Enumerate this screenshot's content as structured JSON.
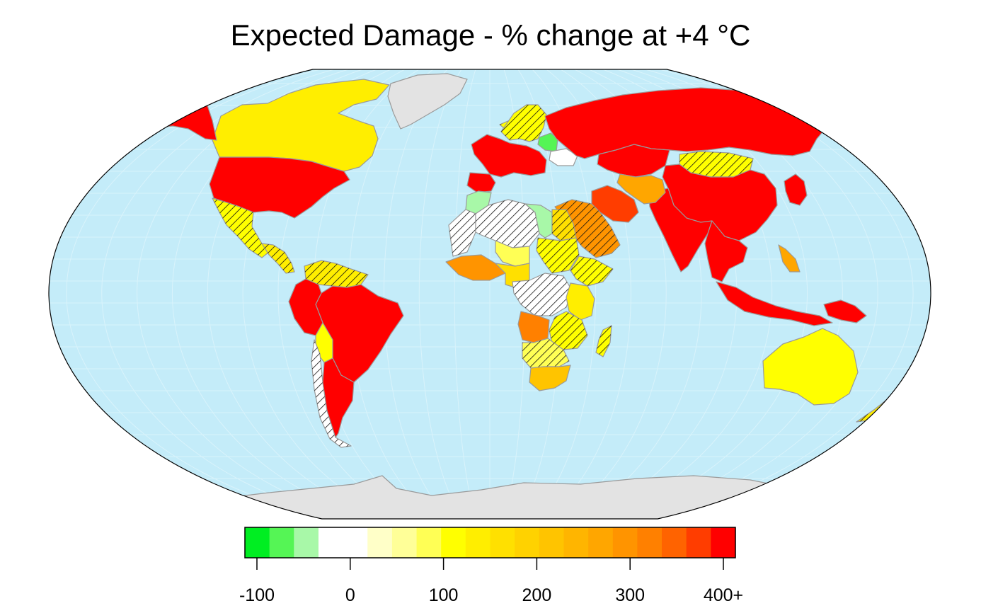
{
  "title": "Expected Damage - % change at +4 °C",
  "colors": {
    "ocean": "#c4ecf9",
    "land_nodata": "#e3e3e3",
    "border": "#9a9a9a",
    "outline": "#000000",
    "graticule": "#d9f3fb",
    "hatch": "#111111"
  },
  "legend": {
    "tick_labels": [
      "-100",
      "0",
      "100",
      "200",
      "300",
      "400+"
    ],
    "tick_values": [
      -100,
      0,
      100,
      200,
      300,
      400
    ],
    "bin_colors": [
      "#00ee22",
      "#55f555",
      "#a8f8a8",
      "#ffffff",
      "#ffffff",
      "#ffffc8",
      "#ffff98",
      "#ffff55",
      "#ffff00",
      "#ffee00",
      "#ffe000",
      "#ffd200",
      "#ffc400",
      "#ffb500",
      "#ffa600",
      "#ff9400",
      "#ff8000",
      "#ff6300",
      "#ff3d00",
      "#ff0000"
    ]
  },
  "regions": [
    {
      "name": "Canada",
      "value": 120
    },
    {
      "name": "United States",
      "value": 400
    },
    {
      "name": "Alaska",
      "value": 400
    },
    {
      "name": "Mexico",
      "value": 110,
      "hatched": true
    },
    {
      "name": "Central America",
      "value": 130,
      "hatched": true
    },
    {
      "name": "Northern South America",
      "value": 130,
      "hatched": true
    },
    {
      "name": "Brazil",
      "value": 400
    },
    {
      "name": "Peru",
      "value": 400
    },
    {
      "name": "Bolivia",
      "value": 100
    },
    {
      "name": "Chile",
      "value": -50,
      "hatched": true
    },
    {
      "name": "Argentina",
      "value": 400
    },
    {
      "name": "Greenland",
      "value": null
    },
    {
      "name": "Iceland",
      "value": 110,
      "hatched": true
    },
    {
      "name": "Scandinavia",
      "value": 110,
      "hatched": true
    },
    {
      "name": "Western Europe",
      "value": 400
    },
    {
      "name": "Iberia",
      "value": 400
    },
    {
      "name": "Baltic",
      "value": -90
    },
    {
      "name": "Belarus",
      "value": 0
    },
    {
      "name": "Russia",
      "value": 400
    },
    {
      "name": "Kazakhstan",
      "value": 400
    },
    {
      "name": "Mongolia",
      "value": 110,
      "hatched": true
    },
    {
      "name": "China",
      "value": 400
    },
    {
      "name": "Japan",
      "value": 400
    },
    {
      "name": "India",
      "value": 400
    },
    {
      "name": "Iran",
      "value": 380
    },
    {
      "name": "Arabia",
      "value": 300,
      "hatched": true
    },
    {
      "name": "Central Asia",
      "value": 250
    },
    {
      "name": "Southeast Asia",
      "value": 400
    },
    {
      "name": "Indonesia",
      "value": 400
    },
    {
      "name": "Philippines",
      "value": 250
    },
    {
      "name": "Papua New Guinea",
      "value": 400
    },
    {
      "name": "Australia",
      "value": 100
    },
    {
      "name": "New Zealand",
      "value": 130,
      "hatched": true
    },
    {
      "name": "Morocco",
      "value": -60
    },
    {
      "name": "Western Sahara",
      "value": -40,
      "hatched": true
    },
    {
      "name": "Algeria",
      "value": 0,
      "hatched": true
    },
    {
      "name": "Libya",
      "value": -60
    },
    {
      "name": "Egypt",
      "value": 150,
      "hatched": true
    },
    {
      "name": "Sahel",
      "value": 80
    },
    {
      "name": "West Africa",
      "value": 300
    },
    {
      "name": "Nigeria",
      "value": 150
    },
    {
      "name": "Sudan",
      "value": 110,
      "hatched": true
    },
    {
      "name": "Ethiopia",
      "value": 110,
      "hatched": true
    },
    {
      "name": "Congo Basin",
      "value": 0,
      "hatched": true
    },
    {
      "name": "Angola",
      "value": 320
    },
    {
      "name": "East Africa",
      "value": 120
    },
    {
      "name": "Tanzania",
      "value": 110,
      "hatched": true
    },
    {
      "name": "Southern Africa",
      "value": 60,
      "hatched": true
    },
    {
      "name": "South Africa",
      "value": 200
    },
    {
      "name": "Madagascar",
      "value": 110,
      "hatched": true
    },
    {
      "name": "Antarctica",
      "value": null
    }
  ]
}
